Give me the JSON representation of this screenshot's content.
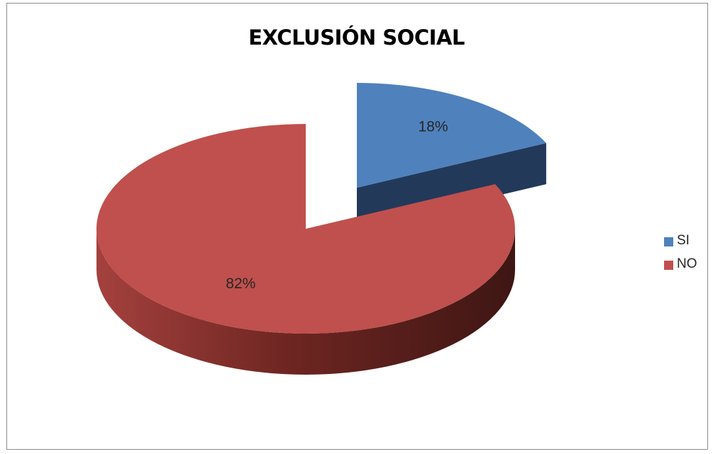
{
  "chart_data": {
    "type": "pie",
    "style": "3d-exploded",
    "title": "EXCLUSIÓN SOCIAL",
    "categories": [
      "SI",
      "NO"
    ],
    "values": [
      18,
      82
    ],
    "labels": [
      "18%",
      "82%"
    ],
    "colors": [
      "#4f81bd",
      "#c0504d"
    ],
    "legend_position": "right"
  }
}
